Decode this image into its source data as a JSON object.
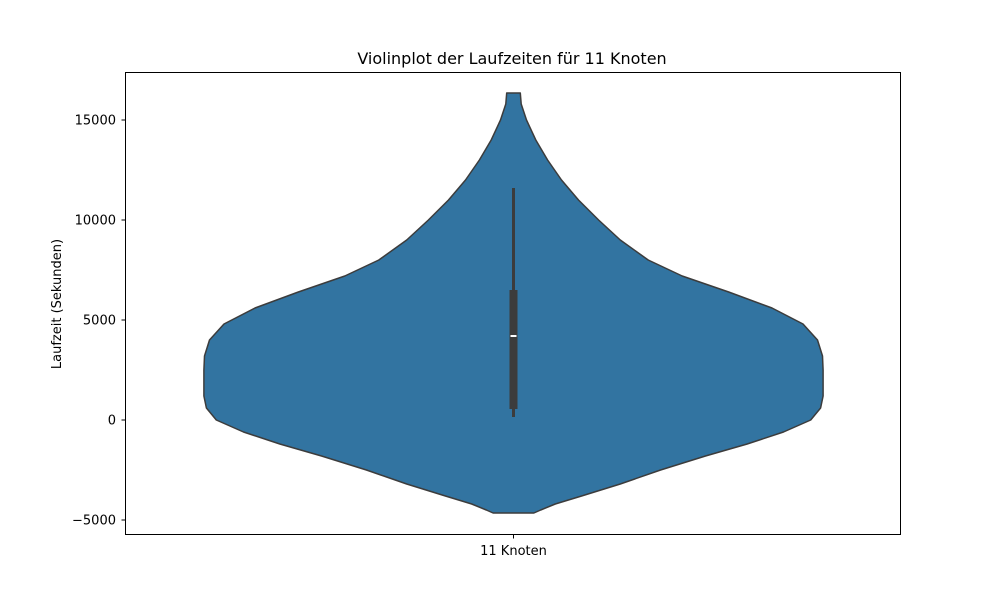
{
  "chart_data": {
    "type": "violin",
    "title": "Violinplot der Laufzeiten für 11 Knoten",
    "xlabel": "",
    "ylabel": "Laufzeit (Sekunden)",
    "categories": [
      "11 Knoten"
    ],
    "ylim": [
      -5700,
      17400
    ],
    "yticks": [
      -5000,
      0,
      5000,
      10000,
      15000
    ],
    "ytick_labels": [
      "−5000",
      "0",
      "5000",
      "10000",
      "15000"
    ],
    "grid": false,
    "fill_color": "#3274a1",
    "edge_color": "#3c3c3c",
    "violin": {
      "min_extent": -4650,
      "max_extent": 16350,
      "max_half_width_fraction": 0.4,
      "density_profile": [
        {
          "y": -4650,
          "w": 0.066
        },
        {
          "y": -4500,
          "w": 0.088
        },
        {
          "y": -4200,
          "w": 0.135
        },
        {
          "y": -3800,
          "w": 0.22
        },
        {
          "y": -3200,
          "w": 0.345
        },
        {
          "y": -2500,
          "w": 0.475
        },
        {
          "y": -1800,
          "w": 0.62
        },
        {
          "y": -1200,
          "w": 0.755
        },
        {
          "y": -600,
          "w": 0.872
        },
        {
          "y": 0,
          "w": 0.96
        },
        {
          "y": 600,
          "w": 0.992
        },
        {
          "y": 1200,
          "w": 1.0
        },
        {
          "y": 1800,
          "w": 1.0
        },
        {
          "y": 2500,
          "w": 1.0
        },
        {
          "y": 3200,
          "w": 0.998
        },
        {
          "y": 4000,
          "w": 0.982
        },
        {
          "y": 4800,
          "w": 0.935
        },
        {
          "y": 5600,
          "w": 0.835
        },
        {
          "y": 6400,
          "w": 0.695
        },
        {
          "y": 7200,
          "w": 0.545
        },
        {
          "y": 8000,
          "w": 0.435
        },
        {
          "y": 9000,
          "w": 0.345
        },
        {
          "y": 10000,
          "w": 0.275
        },
        {
          "y": 11000,
          "w": 0.21
        },
        {
          "y": 12000,
          "w": 0.155
        },
        {
          "y": 13000,
          "w": 0.11
        },
        {
          "y": 14000,
          "w": 0.072
        },
        {
          "y": 15000,
          "w": 0.042
        },
        {
          "y": 15800,
          "w": 0.025
        },
        {
          "y": 16350,
          "w": 0.022
        }
      ]
    },
    "box": {
      "whisker_low": 150,
      "q1": 550,
      "median": 4200,
      "q3": 6500,
      "whisker_high": 11600
    }
  }
}
